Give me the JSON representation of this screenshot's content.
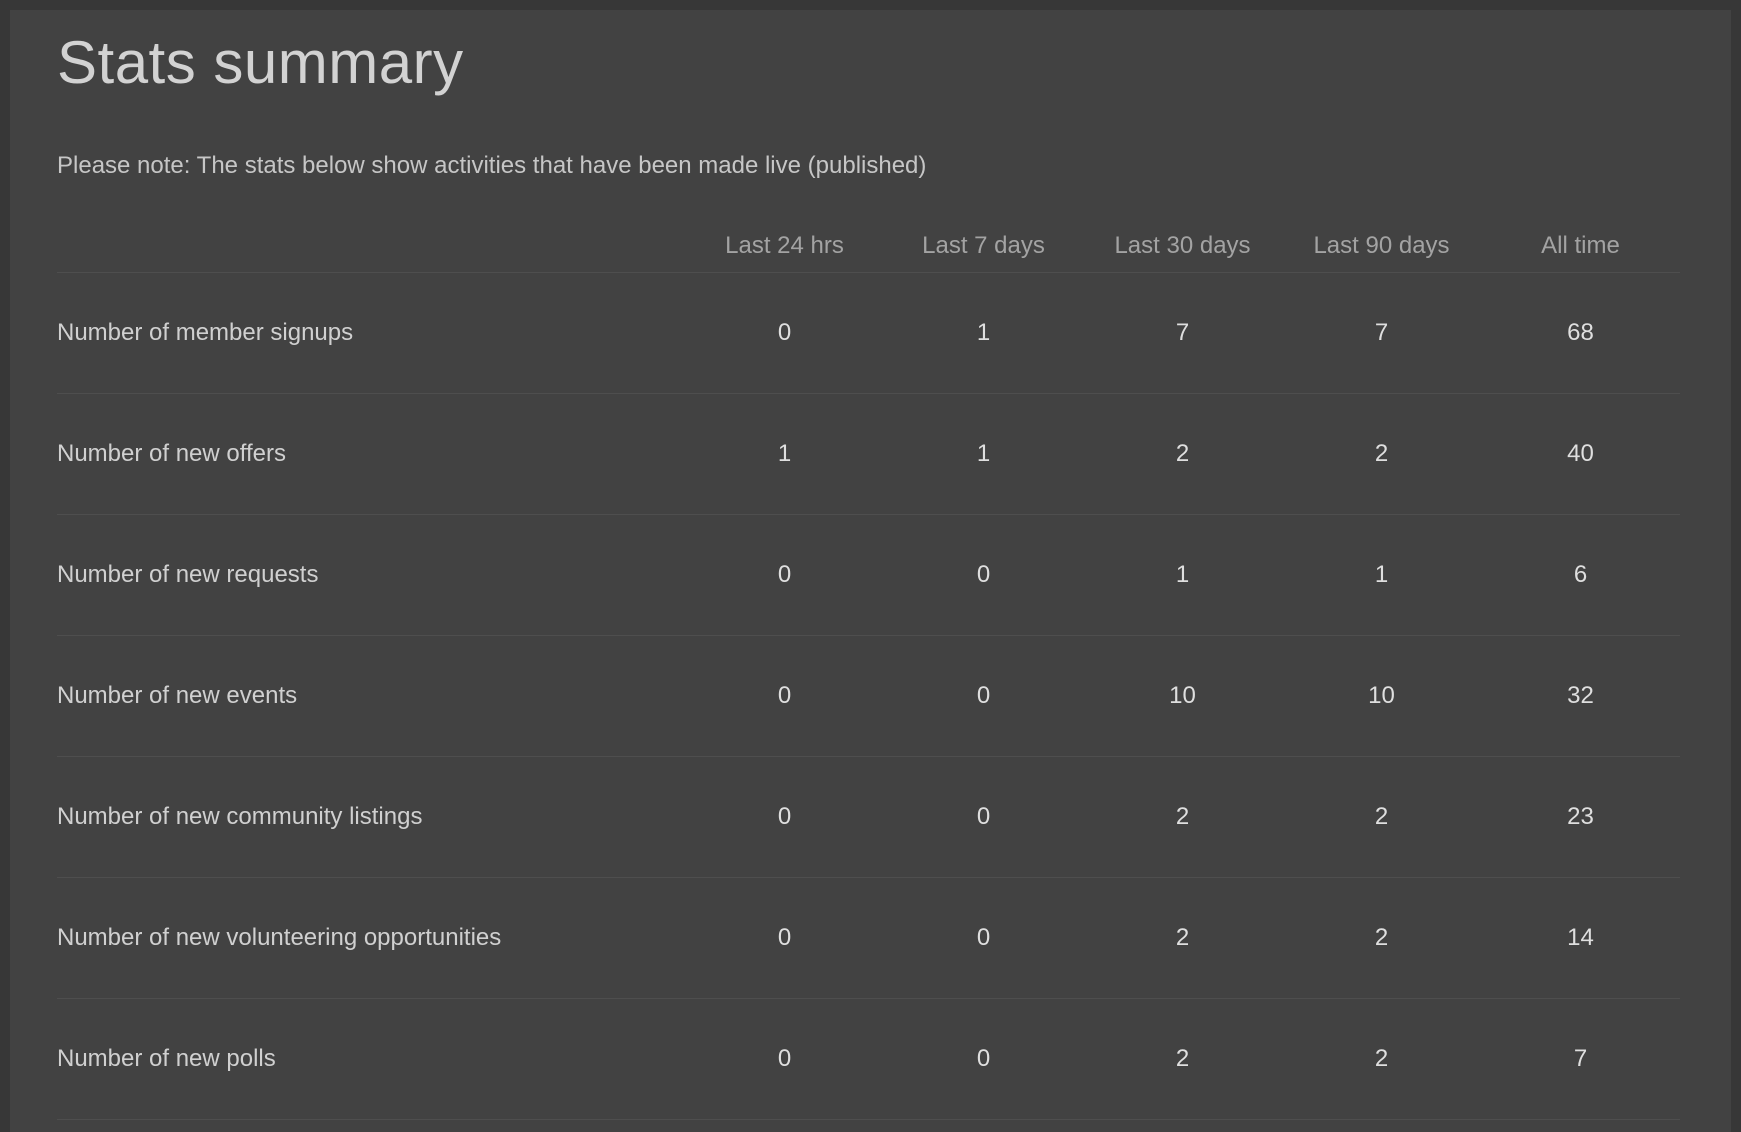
{
  "page": {
    "title": "Stats summary",
    "note": "Please note: The stats below show activities that have been made live (published)"
  },
  "table": {
    "columns": [
      "Last 24 hrs",
      "Last 7 days",
      "Last 30 days",
      "Last 90 days",
      "All time"
    ],
    "rows": [
      {
        "label": "Number of member signups",
        "values": [
          "0",
          "1",
          "7",
          "7",
          "68"
        ]
      },
      {
        "label": "Number of new offers",
        "values": [
          "1",
          "1",
          "2",
          "2",
          "40"
        ]
      },
      {
        "label": "Number of new requests",
        "values": [
          "0",
          "0",
          "1",
          "1",
          "6"
        ]
      },
      {
        "label": "Number of new events",
        "values": [
          "0",
          "0",
          "10",
          "10",
          "32"
        ]
      },
      {
        "label": "Number of new community listings",
        "values": [
          "0",
          "0",
          "2",
          "2",
          "23"
        ]
      },
      {
        "label": "Number of new volunteering opportunities",
        "values": [
          "0",
          "0",
          "2",
          "2",
          "14"
        ]
      },
      {
        "label": "Number of new polls",
        "values": [
          "0",
          "0",
          "2",
          "2",
          "7"
        ]
      }
    ]
  },
  "colors": {
    "outer_background": "#373737",
    "panel_background": "#424242",
    "separator": "#4e4e4e",
    "title_text": "#d2d2d2",
    "note_text": "#c6c6c6",
    "header_text": "#a3a3a3",
    "label_text": "#d0d0d0",
    "value_text": "#dfdfdf"
  }
}
